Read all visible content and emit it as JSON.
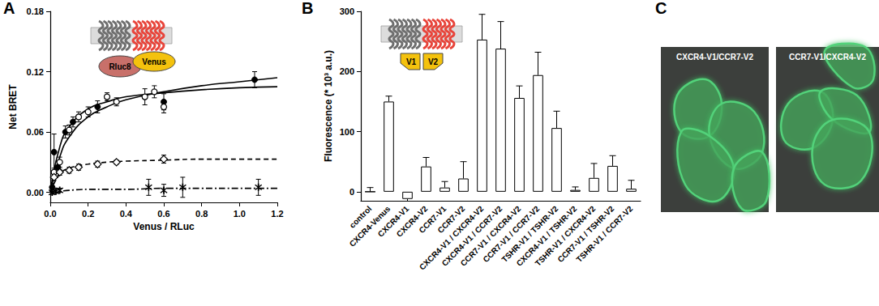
{
  "chart_data": [
    {
      "label": "A",
      "type": "scatter",
      "color": "#000000",
      "x_label": "Venus / RLuc",
      "y_label": "Net BRET",
      "xlim": [
        0,
        1.2
      ],
      "xticks": [
        {
          "value": 0,
          "label": "0.0"
        },
        0.2,
        0.4,
        0.6,
        0.8,
        {
          "value": 1,
          "label": "1.0"
        },
        1.2
      ],
      "ylim": [
        -0.01,
        0.18
      ],
      "yticks": [
        {
          "value": 0,
          "label": "0.00"
        },
        0.06,
        0.12,
        0.18
      ],
      "annotations": [
        "Rluc8",
        "Venus"
      ],
      "series": [
        {
          "type": "scatter",
          "marker": "circle_filled",
          "x": [
            0.01,
            0.02,
            0.04,
            0.08,
            0.12,
            0.25,
            0.6,
            1.08
          ],
          "values": [
            0.005,
            0.04,
            0.025,
            0.06,
            0.07,
            0.085,
            0.09,
            0.112
          ],
          "errors": [
            0.004,
            0.018,
            0.006,
            0.006,
            0.005,
            0.006,
            0.008,
            0.008
          ]
        },
        {
          "type": "scatter",
          "marker": "circle_open",
          "x": [
            0.02,
            0.05,
            0.1,
            0.15,
            0.2,
            0.3,
            0.35,
            0.5,
            0.55,
            0.6
          ],
          "values": [
            0.02,
            0.03,
            0.062,
            0.075,
            0.08,
            0.095,
            0.09,
            0.095,
            0.1,
            0.085
          ],
          "errors": [
            0.004,
            0.005,
            0.005,
            0.005,
            0.005,
            0.004,
            0.004,
            0.008,
            0.006,
            0.006
          ]
        },
        {
          "type": "scatter",
          "marker": "diamond_open",
          "x": [
            0.02,
            0.05,
            0.1,
            0.15,
            0.25,
            0.35,
            0.6
          ],
          "values": [
            0.015,
            0.02,
            0.022,
            0.025,
            0.028,
            0.03,
            0.033
          ],
          "errors": [
            0.003,
            0.003,
            0.003,
            0.003,
            0.003,
            0.002,
            0.004
          ]
        },
        {
          "type": "scatter",
          "marker": "asterisk",
          "x": [
            0.01,
            0.03,
            0.05,
            0.52,
            0.6,
            0.7,
            1.1
          ],
          "values": [
            0,
            0.001,
            0.002,
            0.005,
            0.002,
            0.005,
            0.005
          ],
          "errors": [
            0.002,
            0.002,
            0.002,
            0.008,
            0.006,
            0.01,
            0.008
          ]
        },
        {
          "type": "line",
          "line_style": "solid",
          "x": [
            0,
            0.05,
            0.1,
            0.2,
            0.3,
            0.4,
            0.6,
            0.8,
            1,
            1.2
          ],
          "values": [
            0,
            0.035,
            0.055,
            0.075,
            0.085,
            0.092,
            0.1,
            0.106,
            0.11,
            0.114
          ]
        },
        {
          "type": "line",
          "line_style": "solid",
          "x": [
            0,
            0.05,
            0.1,
            0.2,
            0.3,
            0.4,
            0.6,
            0.8,
            1,
            1.2
          ],
          "values": [
            0,
            0.045,
            0.065,
            0.083,
            0.09,
            0.095,
            0.099,
            0.102,
            0.104,
            0.105
          ]
        },
        {
          "type": "line",
          "line_style": "dashed",
          "x": [
            0,
            0.05,
            0.1,
            0.2,
            0.3,
            0.4,
            0.6,
            0.8,
            1,
            1.2
          ],
          "values": [
            0,
            0.018,
            0.024,
            0.028,
            0.03,
            0.031,
            0.032,
            0.033,
            0.033,
            0.033
          ]
        },
        {
          "type": "line",
          "line_style": "dashdot",
          "x": [
            0,
            0.05,
            0.1,
            0.2,
            0.3,
            0.4,
            0.6,
            0.8,
            1,
            1.2
          ],
          "values": [
            0,
            0.001,
            0.002,
            0.003,
            0.003,
            0.003,
            0.004,
            0.004,
            0.004,
            0.004
          ]
        }
      ]
    },
    {
      "label": "B",
      "type": "bar",
      "color": "#ffffff",
      "y_label": "Fluorescence (* 10³ a.u.)",
      "categories": [
        "control",
        "CXCR4-Venus",
        "CXCR4-V1",
        "CXCR4-V2",
        "CCR7-V1",
        "CCR7-V2",
        "CXCR4-V1 / CXCR4-V2",
        "CXCR4-V1 / CCR7-V2",
        "CCR7-V1 / CXCR4-V2",
        "CCR7-V1 / CCR7-V2",
        "TSHR-V1 / TSHR-V2",
        "CXCR4-V1 / TSHR-V2",
        "TSHR-V1 / CXCR4-V2",
        "CCR7-V1 / TSHR-V2",
        "TSHR-V1 / CCR7-V2"
      ],
      "values": [
        0,
        150,
        -12,
        42,
        7,
        22,
        253,
        238,
        156,
        194,
        106,
        3,
        23,
        43,
        5
      ],
      "errors": [
        7,
        9,
        6,
        15,
        10,
        28,
        42,
        45,
        20,
        38,
        28,
        5,
        24,
        17,
        14
      ],
      "ylim": [
        -15,
        300
      ],
      "yticks": [
        0,
        100,
        200,
        300
      ],
      "annotations": [
        "V1",
        "V2"
      ]
    }
  ],
  "images": {
    "label": "C",
    "panels": [
      {
        "caption": "CXCR4-V1/CCR7-V2"
      },
      {
        "caption": "CCR7-V1/CXCR4-V2"
      }
    ]
  }
}
